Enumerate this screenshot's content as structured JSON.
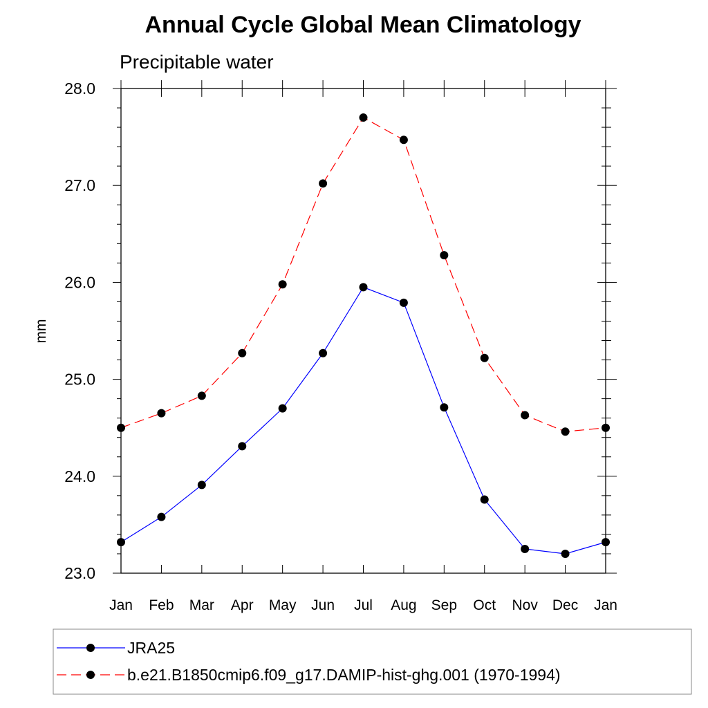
{
  "chart_data": {
    "type": "line",
    "title": "Annual Cycle Global Mean Climatology",
    "subtitle": "Precipitable water",
    "xlabel": "",
    "ylabel": "mm",
    "categories": [
      "Jan",
      "Feb",
      "Mar",
      "Apr",
      "May",
      "Jun",
      "Jul",
      "Aug",
      "Sep",
      "Oct",
      "Nov",
      "Dec",
      "Jan"
    ],
    "ylim": [
      23.0,
      28.0
    ],
    "yticks": [
      "23.0",
      "24.0",
      "25.0",
      "26.0",
      "27.0",
      "28.0"
    ],
    "grid": false,
    "legend_position": "bottom",
    "series": [
      {
        "name": "JRA25",
        "color": "#0000ff",
        "style": "solid",
        "marker": "filled-circle",
        "values": [
          23.32,
          23.58,
          23.91,
          24.31,
          24.7,
          25.27,
          25.95,
          25.79,
          24.71,
          23.76,
          23.25,
          23.2,
          23.32
        ]
      },
      {
        "name": "b.e21.B1850cmip6.f09_g17.DAMIP-hist-ghg.001 (1970-1994)",
        "color": "#ff0000",
        "style": "dashed",
        "marker": "filled-circle",
        "values": [
          24.5,
          24.65,
          24.83,
          25.27,
          25.98,
          27.02,
          27.7,
          27.47,
          26.28,
          25.22,
          24.63,
          24.46,
          24.5
        ]
      }
    ]
  }
}
